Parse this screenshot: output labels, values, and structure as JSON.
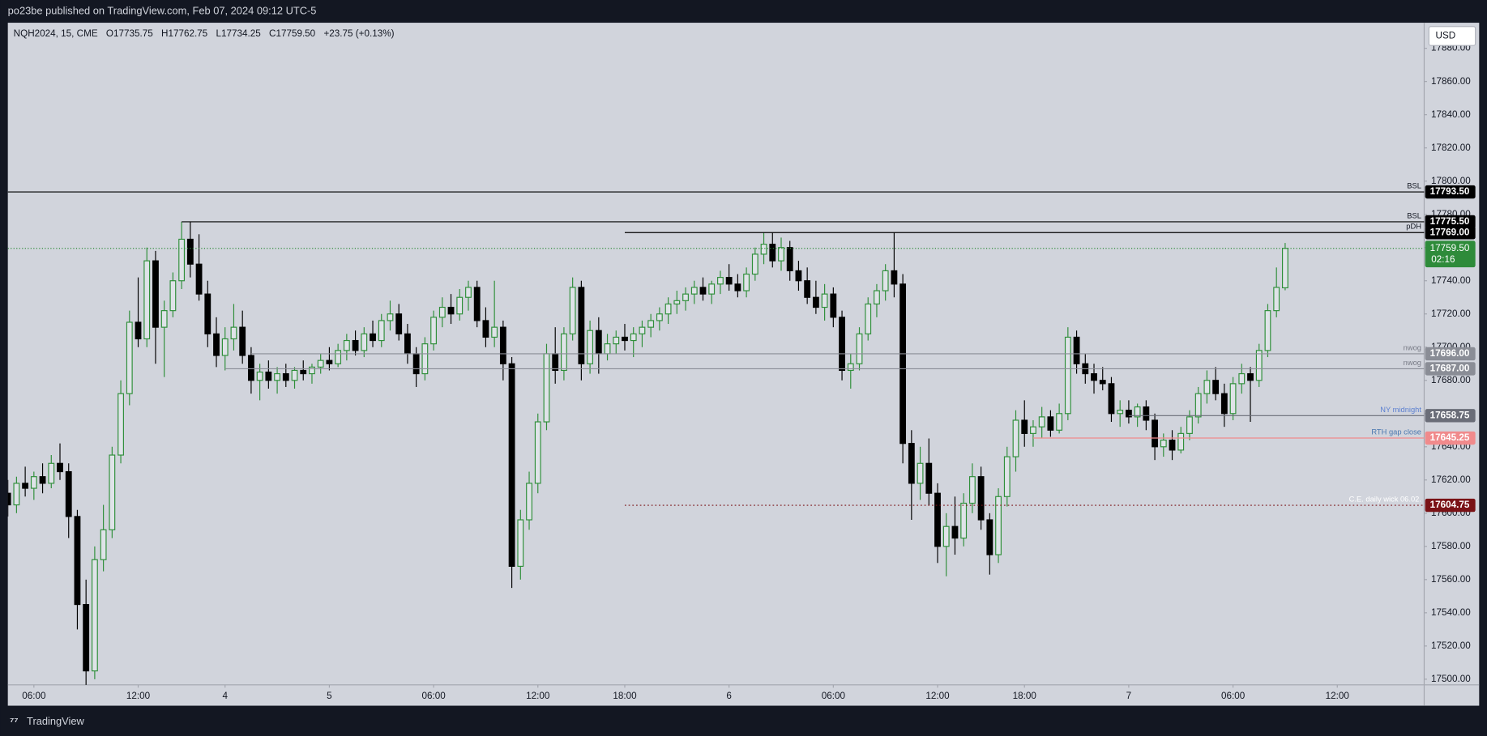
{
  "header": "po23be published on TradingView.com, Feb 07, 2024 09:12 UTC-5",
  "footer": "TradingView",
  "chart_data": {
    "type": "candlestick",
    "legend": [
      "NQH2024, 15, CME",
      "O17735.75",
      "H17762.75",
      "L17734.25",
      "C17759.50",
      "+23.75 (+0.13%)"
    ],
    "currency": "USD",
    "up_color": "#2f8f3a",
    "down_color": "#000000",
    "xlim": [
      0,
      163
    ],
    "xticks": [
      {
        "value": 3,
        "label": "06:00"
      },
      {
        "value": 15,
        "label": "12:00"
      },
      {
        "value": 25,
        "label": "4"
      },
      {
        "value": 37,
        "label": "5"
      },
      {
        "value": 49,
        "label": "06:00"
      },
      {
        "value": 61,
        "label": "12:00"
      },
      {
        "value": 71,
        "label": "18:00"
      },
      {
        "value": 83,
        "label": "6"
      },
      {
        "value": 95,
        "label": "06:00"
      },
      {
        "value": 107,
        "label": "12:00"
      },
      {
        "value": 117,
        "label": "18:00"
      },
      {
        "value": 129,
        "label": "7"
      },
      {
        "value": 141,
        "label": "06:00"
      },
      {
        "value": 153,
        "label": "12:00"
      }
    ],
    "ylim": [
      17496.6,
      17895.4
    ],
    "yticks": [
      {
        "value": 17500,
        "label": "17500.00"
      },
      {
        "value": 17520,
        "label": "17520.00"
      },
      {
        "value": 17540,
        "label": "17540.00"
      },
      {
        "value": 17560,
        "label": "17560.00"
      },
      {
        "value": 17580,
        "label": "17580.00"
      },
      {
        "value": 17600,
        "label": "17600.00"
      },
      {
        "value": 17620,
        "label": "17620.00"
      },
      {
        "value": 17640,
        "label": "17640.00"
      },
      {
        "value": 17660,
        "label": "17660.00"
      },
      {
        "value": 17680,
        "label": "17680.00"
      },
      {
        "value": 17700,
        "label": "17700.00"
      },
      {
        "value": 17720,
        "label": "17720.00"
      },
      {
        "value": 17740,
        "label": "17740.00"
      },
      {
        "value": 17760,
        "label": "17760.00"
      },
      {
        "value": 17780,
        "label": "17780.00"
      },
      {
        "value": 17800,
        "label": "17800.00"
      },
      {
        "value": 17820,
        "label": "17820.00"
      },
      {
        "value": 17840,
        "label": "17840.00"
      },
      {
        "value": 17860,
        "label": "17860.00"
      },
      {
        "value": 17880,
        "label": "17880.00"
      }
    ],
    "ohlc": [
      [
        17612,
        17620,
        17598,
        17605
      ],
      [
        17605,
        17622,
        17600,
        17618
      ],
      [
        17618,
        17628,
        17610,
        17615
      ],
      [
        17615,
        17625,
        17608,
        17622
      ],
      [
        17622,
        17630,
        17612,
        17618
      ],
      [
        17618,
        17635,
        17615,
        17630
      ],
      [
        17630,
        17642,
        17620,
        17625
      ],
      [
        17625,
        17630,
        17585,
        17598
      ],
      [
        17598,
        17602,
        17530,
        17545
      ],
      [
        17545,
        17560,
        17490,
        17505
      ],
      [
        17505,
        17580,
        17500,
        17572
      ],
      [
        17572,
        17605,
        17565,
        17590
      ],
      [
        17590,
        17640,
        17585,
        17635
      ],
      [
        17635,
        17680,
        17630,
        17672
      ],
      [
        17672,
        17722,
        17665,
        17715
      ],
      [
        17715,
        17742,
        17700,
        17705
      ],
      [
        17705,
        17760,
        17700,
        17752
      ],
      [
        17752,
        17758,
        17690,
        17712
      ],
      [
        17712,
        17728,
        17682,
        17722
      ],
      [
        17722,
        17745,
        17718,
        17740
      ],
      [
        17740,
        17775.5,
        17735,
        17765
      ],
      [
        17765,
        17775.5,
        17742,
        17750
      ],
      [
        17750,
        17768,
        17728,
        17732
      ],
      [
        17732,
        17740,
        17700,
        17708
      ],
      [
        17708,
        17718,
        17688,
        17695
      ],
      [
        17695,
        17712,
        17686,
        17705
      ],
      [
        17705,
        17726,
        17698,
        17712
      ],
      [
        17712,
        17722,
        17690,
        17695
      ],
      [
        17695,
        17700,
        17672,
        17680
      ],
      [
        17680,
        17690,
        17668,
        17685
      ],
      [
        17685,
        17692,
        17675,
        17680
      ],
      [
        17680,
        17688,
        17672,
        17684
      ],
      [
        17684,
        17690,
        17676,
        17680
      ],
      [
        17680,
        17688,
        17675,
        17686
      ],
      [
        17686,
        17692,
        17680,
        17684
      ],
      [
        17684,
        17690,
        17678,
        17688
      ],
      [
        17688,
        17696,
        17684,
        17692
      ],
      [
        17692,
        17700,
        17686,
        17690
      ],
      [
        17690,
        17702,
        17688,
        17698
      ],
      [
        17698,
        17708,
        17692,
        17704
      ],
      [
        17704,
        17710,
        17695,
        17698
      ],
      [
        17698,
        17712,
        17694,
        17708
      ],
      [
        17708,
        17716,
        17700,
        17704
      ],
      [
        17704,
        17720,
        17700,
        17716
      ],
      [
        17716,
        17728,
        17710,
        17720
      ],
      [
        17720,
        17726,
        17704,
        17708
      ],
      [
        17708,
        17714,
        17690,
        17696
      ],
      [
        17696,
        17700,
        17676,
        17684
      ],
      [
        17684,
        17706,
        17680,
        17702
      ],
      [
        17702,
        17722,
        17698,
        17718
      ],
      [
        17718,
        17730,
        17712,
        17724
      ],
      [
        17724,
        17732,
        17714,
        17720
      ],
      [
        17720,
        17735,
        17716,
        17730
      ],
      [
        17730,
        17740,
        17722,
        17736
      ],
      [
        17736,
        17740,
        17712,
        17716
      ],
      [
        17716,
        17724,
        17700,
        17706
      ],
      [
        17706,
        17740,
        17700,
        17712
      ],
      [
        17712,
        17716,
        17680,
        17690
      ],
      [
        17690,
        17694,
        17555,
        17568
      ],
      [
        17568,
        17602,
        17560,
        17596
      ],
      [
        17596,
        17625,
        17590,
        17618
      ],
      [
        17618,
        17660,
        17612,
        17655
      ],
      [
        17655,
        17702,
        17650,
        17696
      ],
      [
        17696,
        17712,
        17678,
        17686
      ],
      [
        17686,
        17712,
        17680,
        17708
      ],
      [
        17708,
        17742,
        17704,
        17736
      ],
      [
        17736,
        17740,
        17680,
        17690
      ],
      [
        17690,
        17716,
        17684,
        17710
      ],
      [
        17710,
        17718,
        17684,
        17696
      ],
      [
        17696,
        17708,
        17692,
        17702
      ],
      [
        17702,
        17710,
        17696,
        17706
      ],
      [
        17706,
        17714,
        17698,
        17704
      ],
      [
        17704,
        17712,
        17694,
        17708
      ],
      [
        17708,
        17716,
        17700,
        17712
      ],
      [
        17712,
        17720,
        17706,
        17716
      ],
      [
        17716,
        17724,
        17710,
        17720
      ],
      [
        17720,
        17730,
        17714,
        17726
      ],
      [
        17726,
        17734,
        17720,
        17728
      ],
      [
        17728,
        17736,
        17722,
        17732
      ],
      [
        17732,
        17740,
        17726,
        17736
      ],
      [
        17736,
        17742,
        17728,
        17732
      ],
      [
        17732,
        17740,
        17726,
        17738
      ],
      [
        17738,
        17746,
        17732,
        17742
      ],
      [
        17742,
        17750,
        17734,
        17738
      ],
      [
        17738,
        17744,
        17730,
        17734
      ],
      [
        17734,
        17748,
        17730,
        17744
      ],
      [
        17744,
        17760,
        17740,
        17756
      ],
      [
        17756,
        17769,
        17750,
        17762
      ],
      [
        17762,
        17769,
        17748,
        17752
      ],
      [
        17752,
        17766,
        17746,
        17760
      ],
      [
        17760,
        17764,
        17740,
        17746
      ],
      [
        17746,
        17752,
        17734,
        17740
      ],
      [
        17740,
        17748,
        17726,
        17730
      ],
      [
        17730,
        17740,
        17720,
        17724
      ],
      [
        17724,
        17738,
        17716,
        17732
      ],
      [
        17732,
        17736,
        17712,
        17718
      ],
      [
        17718,
        17722,
        17680,
        17686
      ],
      [
        17686,
        17696,
        17675,
        17690
      ],
      [
        17690,
        17712,
        17686,
        17708
      ],
      [
        17708,
        17730,
        17704,
        17726
      ],
      [
        17726,
        17738,
        17718,
        17734
      ],
      [
        17734,
        17750,
        17728,
        17746
      ],
      [
        17746,
        17769,
        17730,
        17738
      ],
      [
        17738,
        17744,
        17630,
        17642
      ],
      [
        17642,
        17650,
        17596,
        17618
      ],
      [
        17618,
        17640,
        17608,
        17630
      ],
      [
        17630,
        17645,
        17605,
        17612
      ],
      [
        17612,
        17618,
        17570,
        17580
      ],
      [
        17580,
        17600,
        17562,
        17592
      ],
      [
        17592,
        17610,
        17575,
        17585
      ],
      [
        17585,
        17612,
        17580,
        17606
      ],
      [
        17606,
        17630,
        17600,
        17622
      ],
      [
        17622,
        17628,
        17590,
        17596
      ],
      [
        17596,
        17600,
        17563,
        17575
      ],
      [
        17575,
        17615,
        17570,
        17610
      ],
      [
        17610,
        17640,
        17604,
        17634
      ],
      [
        17634,
        17662,
        17625,
        17656
      ],
      [
        17656,
        17668,
        17640,
        17648
      ],
      [
        17648,
        17656,
        17640,
        17652
      ],
      [
        17652,
        17664,
        17645,
        17658
      ],
      [
        17658,
        17662,
        17646,
        17650
      ],
      [
        17650,
        17666,
        17648,
        17660
      ],
      [
        17660,
        17712,
        17656,
        17706
      ],
      [
        17706,
        17710,
        17684,
        17690
      ],
      [
        17690,
        17696,
        17678,
        17684
      ],
      [
        17684,
        17690,
        17672,
        17680
      ],
      [
        17680,
        17688,
        17674,
        17678
      ],
      [
        17678,
        17682,
        17655,
        17660
      ],
      [
        17660,
        17668,
        17652,
        17662
      ],
      [
        17662,
        17668,
        17654,
        17658
      ],
      [
        17658,
        17666,
        17652,
        17664
      ],
      [
        17664,
        17668,
        17650,
        17656
      ],
      [
        17656,
        17660,
        17632,
        17640
      ],
      [
        17640,
        17648,
        17634,
        17644
      ],
      [
        17644,
        17650,
        17632,
        17638
      ],
      [
        17638,
        17652,
        17636,
        17648
      ],
      [
        17648,
        17662,
        17644,
        17658
      ],
      [
        17658,
        17676,
        17654,
        17672
      ],
      [
        17672,
        17686,
        17666,
        17680
      ],
      [
        17680,
        17688,
        17668,
        17672
      ],
      [
        17672,
        17678,
        17652,
        17660
      ],
      [
        17660,
        17682,
        17656,
        17678
      ],
      [
        17678,
        17690,
        17672,
        17684
      ],
      [
        17684,
        17688,
        17655,
        17680
      ],
      [
        17680,
        17702,
        17676,
        17698
      ],
      [
        17698,
        17726,
        17694,
        17722
      ],
      [
        17722,
        17748,
        17718,
        17736
      ],
      [
        17735.75,
        17762.75,
        17734.25,
        17759.5
      ]
    ],
    "levels": [
      {
        "name": "BSL",
        "price": {
          "value": 17793.5,
          "label": "17793.50"
        },
        "start": 0,
        "color": "#000000",
        "label_color": "#131722",
        "style": "solid"
      },
      {
        "name": "BSL",
        "price": {
          "value": 17775.5,
          "label": "17775.50"
        },
        "start": 20,
        "color": "#000000",
        "label_color": "#131722",
        "style": "solid"
      },
      {
        "name": "pDH",
        "price": {
          "value": 17769,
          "label": "17769.00"
        },
        "start": 71,
        "color": "#000000",
        "label_color": "#131722",
        "style": "solid"
      },
      {
        "name": "nwog",
        "price": {
          "value": 17696,
          "label": "17696.00"
        },
        "start": 28,
        "color": "#8a8d96",
        "label_color": "#787b86",
        "style": "solid"
      },
      {
        "name": "nwog",
        "price": {
          "value": 17687,
          "label": "17687.00"
        },
        "start": 25,
        "color": "#8a8d96",
        "label_color": "#787b86",
        "style": "solid"
      },
      {
        "name": "NY midnight",
        "price": {
          "value": 17658.75,
          "label": "17658.75"
        },
        "start": 129,
        "color": "#6a6d78",
        "label_color": "#5b7fd0",
        "style": "solid"
      },
      {
        "name": "RTH gap close",
        "price": {
          "value": 17645.25,
          "label": "17645.25"
        },
        "start": 118,
        "color": "#f08a8c",
        "label_color": "#4a78b0",
        "style": "solid"
      },
      {
        "name": "C.E. daily wick 06.02.",
        "price": {
          "value": 17604.75,
          "label": "17604.75"
        },
        "start": 71,
        "color": "#7a1216",
        "label_color": "#ffffff",
        "style": "dotted"
      }
    ],
    "last_price": {
      "value": 17759.5,
      "label": "17759.50"
    },
    "last_color": "#2e8b3a",
    "countdown": "02:16"
  }
}
